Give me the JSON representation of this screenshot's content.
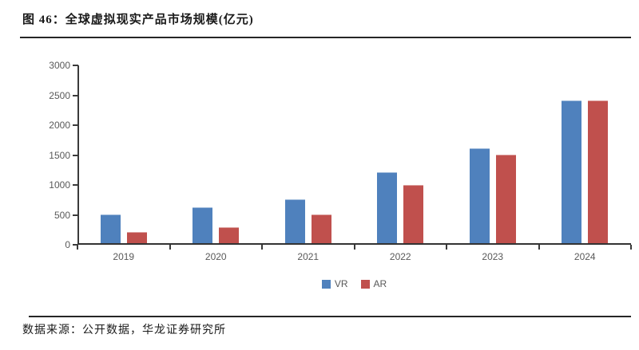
{
  "title": "图 46：全球虚拟现实产品市场规模(亿元)",
  "footer": {
    "source_label": "数据来源：公开数据，华龙证券研究所"
  },
  "colors": {
    "vr": "#4F81BD",
    "ar": "#C0504D",
    "axis": "#333333",
    "tick_label": "#595959",
    "rule": "#262626"
  },
  "chart_data": {
    "type": "bar",
    "title": "全球虚拟现实产品市场规模(亿元)",
    "categories": [
      "2019",
      "2020",
      "2021",
      "2022",
      "2023",
      "2024"
    ],
    "series": [
      {
        "name": "VR",
        "color": "#4F81BD",
        "values": [
          500,
          620,
          750,
          1200,
          1600,
          2400
        ]
      },
      {
        "name": "AR",
        "color": "#C0504D",
        "values": [
          200,
          280,
          490,
          990,
          1500,
          2400
        ]
      }
    ],
    "xlabel": "",
    "ylabel": "",
    "ylim": [
      0,
      3000
    ],
    "ytick_step": 500,
    "ytick_labels": [
      "0",
      "500",
      "1000",
      "1500",
      "2000",
      "2500",
      "3000"
    ],
    "grid": false,
    "legend_position": "bottom"
  }
}
